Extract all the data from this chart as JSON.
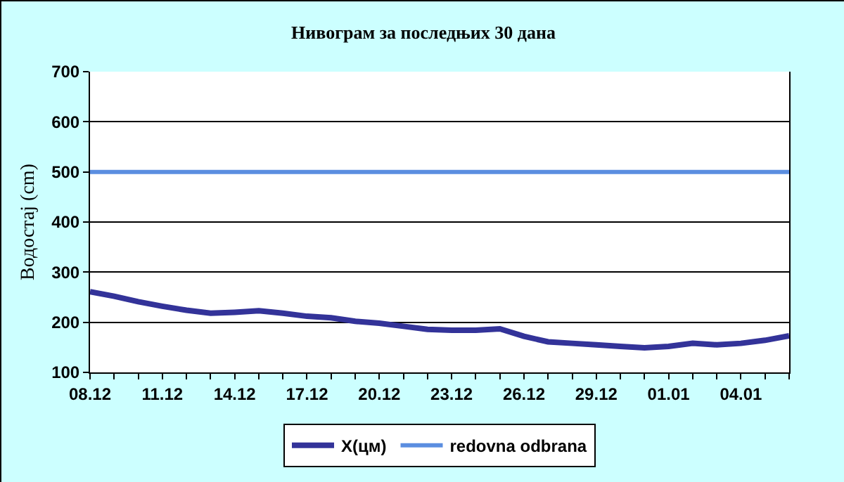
{
  "chart_data": {
    "type": "line",
    "title": "Нивограм за последњих 30 дана",
    "ylabel": "Водостај (cm)",
    "categories": [
      "08.12",
      null,
      null,
      "11.12",
      null,
      null,
      "14.12",
      null,
      null,
      "17.12",
      null,
      null,
      "20.12",
      null,
      null,
      "23.12",
      null,
      null,
      "26.12",
      null,
      null,
      "29.12",
      null,
      null,
      "01.01",
      null,
      null,
      "04.01",
      null,
      null
    ],
    "series": [
      {
        "name": "X(цм)",
        "color": "#333399",
        "values": [
          261,
          252,
          241,
          232,
          224,
          218,
          220,
          223,
          218,
          212,
          209,
          202,
          198,
          192,
          186,
          184,
          184,
          187,
          172,
          161,
          158,
          155,
          152,
          149,
          152,
          158,
          155,
          158,
          164,
          173
        ]
      }
    ],
    "ref_lines": [
      {
        "axis": "y",
        "value": 500,
        "label": "redovna odbrana",
        "color": "#5b8ee0"
      }
    ],
    "ylim": [
      100,
      700
    ],
    "yticks": [
      100,
      200,
      300,
      400,
      500,
      600,
      700
    ],
    "grid": "y",
    "legend": "bottom",
    "marker": "none",
    "line_style": "solid"
  }
}
